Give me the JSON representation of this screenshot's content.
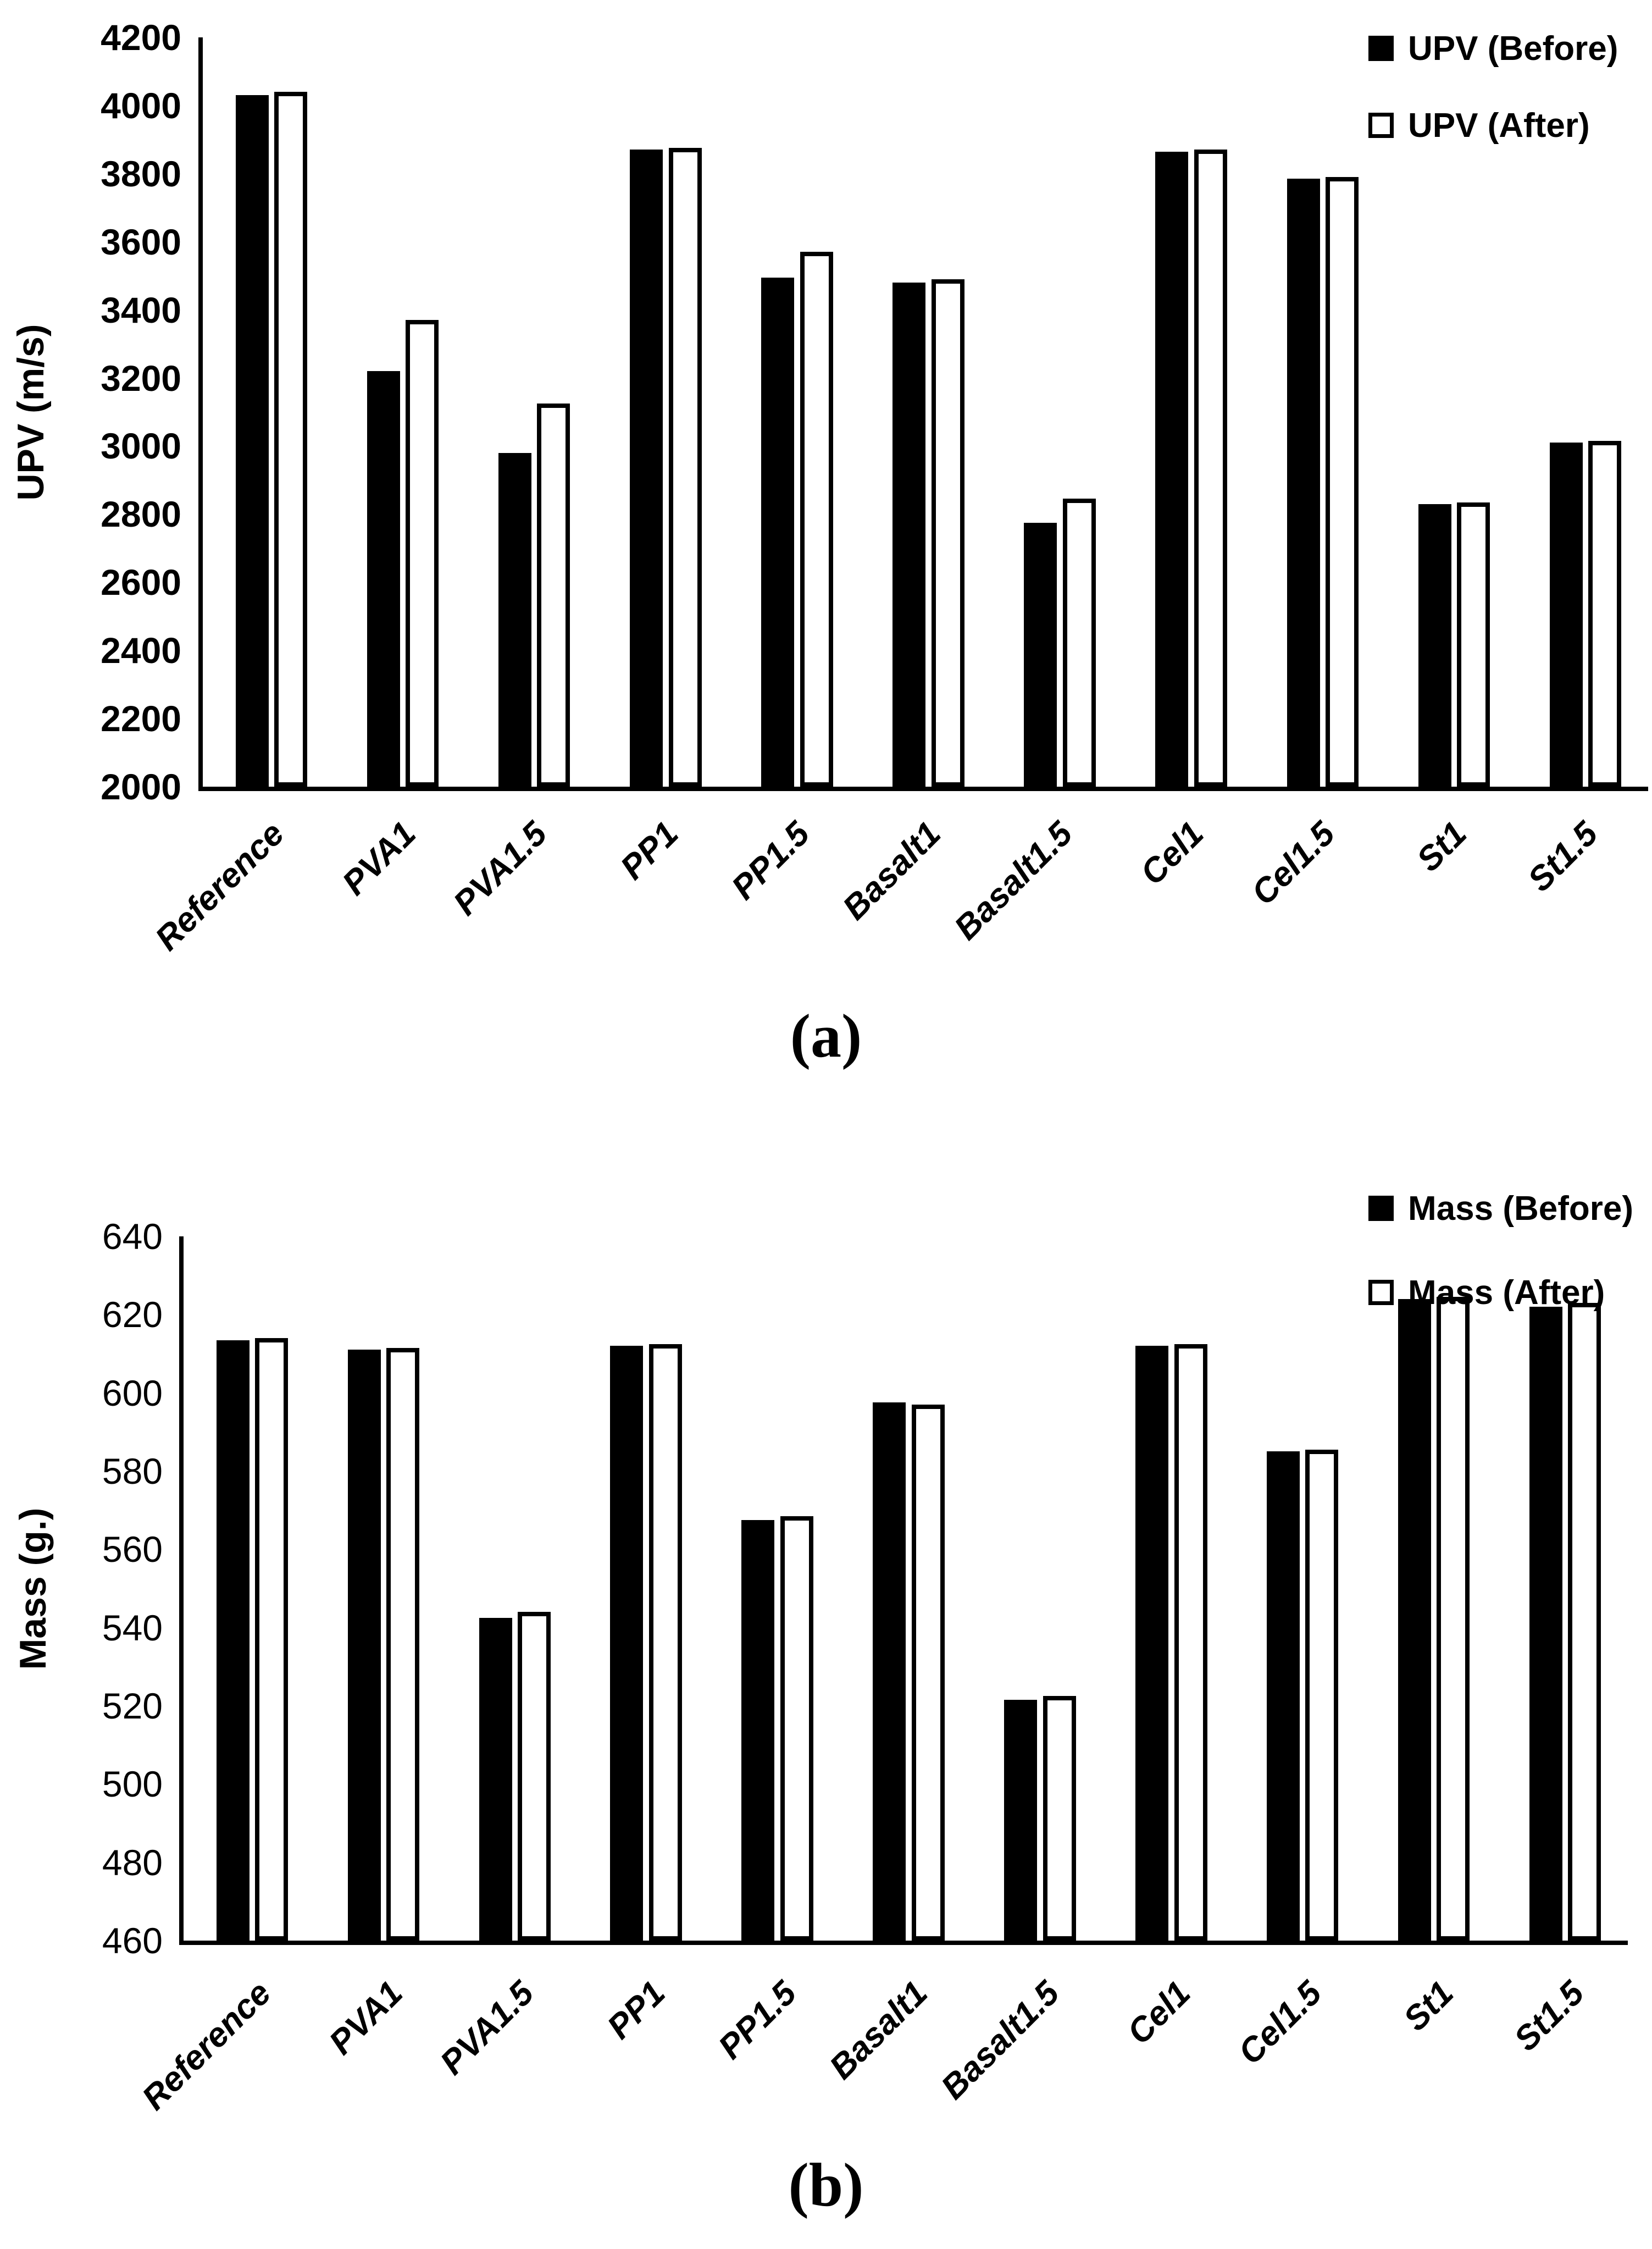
{
  "page": {
    "background": "#ffffff"
  },
  "colors": {
    "before_fill": "#000000",
    "after_fill": "#ffffff",
    "after_border": "#000000",
    "axis": "#000000",
    "text": "#000000"
  },
  "chart_data": [
    {
      "type": "bar",
      "caption": "(a)",
      "title": "",
      "xlabel": "",
      "ylabel": "UPV (m/s)",
      "categories": [
        "Reference",
        "PVA1",
        "PVA1.5",
        "PP1",
        "PP1.5",
        "Basalt1",
        "Basalt1.5",
        "Cel1",
        "Cel1.5",
        "St1",
        "St1.5"
      ],
      "series": [
        {
          "name": "UPV (Before)",
          "style": "filled-black",
          "values": [
            4030,
            3220,
            2980,
            3870,
            3495,
            3480,
            2775,
            3865,
            3785,
            2830,
            3010
          ]
        },
        {
          "name": "UPV (After)",
          "style": "white-outlined",
          "values": [
            4040,
            3370,
            3125,
            3875,
            3570,
            3490,
            2845,
            3870,
            3790,
            2835,
            3015
          ]
        }
      ],
      "ylim": [
        2000,
        4200
      ],
      "ytick_step": 200,
      "yticks": [
        4200,
        4000,
        3800,
        3600,
        3400,
        3200,
        3000,
        2800,
        2600,
        2400,
        2200,
        2000
      ],
      "legend_position": "top-right",
      "grid": false
    },
    {
      "type": "bar",
      "caption": "(b)",
      "title": "",
      "xlabel": "",
      "ylabel": "Mass (g.)",
      "categories": [
        "Reference",
        "PVA1",
        "PVA1.5",
        "PP1",
        "PP1.5",
        "Basalt1",
        "Basalt1.5",
        "Cel1",
        "Cel1.5",
        "St1",
        "St1.5"
      ],
      "series": [
        {
          "name": "Mass (Before)",
          "style": "filled-black",
          "values": [
            613.5,
            611,
            542.5,
            612,
            567.5,
            597.5,
            521.5,
            612,
            585,
            624,
            622
          ]
        },
        {
          "name": "Mass (After)",
          "style": "white-outlined",
          "values": [
            614,
            611.5,
            544,
            612.5,
            568.5,
            597,
            522.5,
            612.5,
            585.5,
            624.5,
            623
          ]
        }
      ],
      "ylim": [
        460,
        640
      ],
      "ytick_step": 20,
      "yticks": [
        640,
        620,
        600,
        580,
        560,
        540,
        520,
        500,
        480,
        460
      ],
      "legend_position": "top-right",
      "grid": false
    }
  ]
}
